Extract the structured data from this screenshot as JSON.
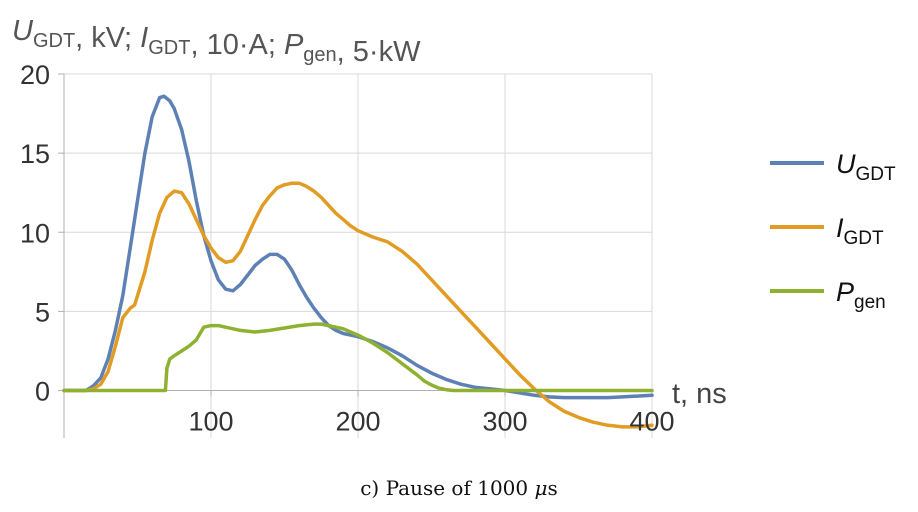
{
  "chart_data": {
    "type": "line",
    "title": {
      "parts": [
        {
          "text": "U",
          "sub": "GDT",
          "italic": true
        },
        {
          "text": ", kV; "
        },
        {
          "text": "I",
          "sub": "GDT",
          "italic": true
        },
        {
          "text": ", 10·A; "
        },
        {
          "text": "P",
          "sub": "gen",
          "italic": true
        },
        {
          "text": ", 5·kW"
        }
      ]
    },
    "xlabel": "t, ns",
    "ylabel": "",
    "xlim": [
      0,
      400
    ],
    "ylim": [
      -3,
      20
    ],
    "xticks": [
      100,
      200,
      300,
      400
    ],
    "yticks": [
      0,
      5,
      10,
      15,
      20
    ],
    "grid": true,
    "legend_position": "right",
    "series": [
      {
        "name": "U",
        "name_sub": "GDT",
        "color": "#5e81b5",
        "x": [
          0,
          10,
          15,
          20,
          25,
          30,
          35,
          40,
          45,
          50,
          55,
          60,
          65,
          68,
          72,
          75,
          80,
          85,
          90,
          95,
          100,
          105,
          110,
          115,
          120,
          125,
          130,
          135,
          140,
          145,
          150,
          155,
          160,
          165,
          170,
          175,
          180,
          185,
          190,
          195,
          200,
          210,
          220,
          230,
          240,
          250,
          260,
          270,
          280,
          290,
          300,
          310,
          320,
          330,
          340,
          350,
          360,
          370,
          380,
          390,
          400
        ],
        "y": [
          0,
          0,
          0,
          0.3,
          0.8,
          2.0,
          3.8,
          6.0,
          9.0,
          12.0,
          15.0,
          17.3,
          18.5,
          18.6,
          18.3,
          17.8,
          16.5,
          14.5,
          12.0,
          9.8,
          8.2,
          7.0,
          6.4,
          6.3,
          6.7,
          7.3,
          7.9,
          8.3,
          8.6,
          8.6,
          8.3,
          7.6,
          6.7,
          5.9,
          5.2,
          4.6,
          4.1,
          3.8,
          3.6,
          3.5,
          3.4,
          3.1,
          2.7,
          2.2,
          1.6,
          1.1,
          0.7,
          0.4,
          0.2,
          0.1,
          0.0,
          -0.15,
          -0.3,
          -0.4,
          -0.45,
          -0.45,
          -0.45,
          -0.45,
          -0.4,
          -0.35,
          -0.3
        ]
      },
      {
        "name": "I",
        "name_sub": "GDT",
        "color": "#e19c24",
        "x": [
          0,
          10,
          15,
          20,
          25,
          30,
          35,
          40,
          45,
          48,
          55,
          60,
          65,
          70,
          75,
          80,
          85,
          90,
          95,
          100,
          105,
          110,
          115,
          120,
          125,
          130,
          135,
          140,
          145,
          150,
          155,
          160,
          165,
          170,
          175,
          180,
          185,
          190,
          195,
          200,
          210,
          220,
          230,
          240,
          250,
          260,
          270,
          280,
          290,
          300,
          310,
          320,
          330,
          340,
          350,
          360,
          370,
          380,
          390,
          400
        ],
        "y": [
          0,
          0,
          0,
          0.1,
          0.4,
          1.2,
          2.8,
          4.6,
          5.2,
          5.4,
          7.5,
          9.5,
          11.2,
          12.2,
          12.6,
          12.5,
          11.8,
          10.8,
          9.8,
          9.0,
          8.4,
          8.1,
          8.2,
          8.8,
          9.8,
          10.8,
          11.7,
          12.3,
          12.8,
          13.0,
          13.1,
          13.1,
          12.9,
          12.6,
          12.2,
          11.7,
          11.2,
          10.8,
          10.4,
          10.1,
          9.7,
          9.4,
          8.8,
          8.0,
          7.0,
          6.0,
          5.0,
          4.0,
          3.0,
          2.0,
          1.0,
          0.1,
          -0.7,
          -1.3,
          -1.7,
          -2.0,
          -2.2,
          -2.3,
          -2.3,
          -2.2
        ]
      },
      {
        "name": "P",
        "name_sub": "gen",
        "color": "#8fb131",
        "x": [
          0,
          20,
          40,
          60,
          69,
          70,
          72,
          75,
          80,
          85,
          90,
          95,
          100,
          105,
          110,
          115,
          120,
          130,
          140,
          150,
          160,
          170,
          175,
          180,
          185,
          190,
          200,
          210,
          220,
          230,
          240,
          245,
          250,
          255,
          260,
          265,
          270,
          280,
          300,
          320,
          340,
          360,
          380,
          400
        ],
        "y": [
          0,
          0,
          0,
          0,
          0,
          1.4,
          2.0,
          2.2,
          2.5,
          2.8,
          3.2,
          4.0,
          4.1,
          4.1,
          4.0,
          3.9,
          3.8,
          3.7,
          3.8,
          3.95,
          4.1,
          4.2,
          4.2,
          4.1,
          4.0,
          3.9,
          3.5,
          3.0,
          2.4,
          1.7,
          1.0,
          0.6,
          0.35,
          0.15,
          0.05,
          0.0,
          0,
          0,
          0,
          0,
          0,
          0,
          0,
          0
        ]
      }
    ]
  },
  "caption": {
    "prefix": "c) Pause of 1000 ",
    "unit_symbol": "μ",
    "unit_suffix": "s"
  }
}
